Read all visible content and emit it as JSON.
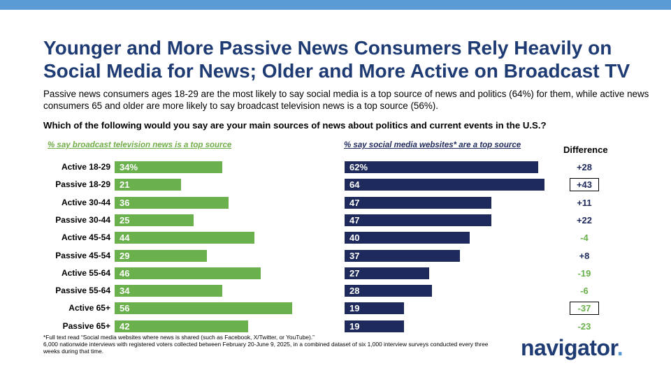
{
  "colors": {
    "broadcast": "#6ab04c",
    "social": "#1f2a5c",
    "title": "#1f3b73",
    "accent": "#5b9bd5"
  },
  "title": "Younger and More Passive News Consumers Rely Heavily on Social Media for News; Older and More Active on Broadcast TV",
  "subtitle": "Passive news consumers ages 18-29 are the most likely to say social media is a top source of news and politics (64%) for them, while active news consumers 65 and older are more likely to say broadcast television news is a top source (56%).",
  "question": "Which of the following would you say are your main sources of news about politics and current events in the U.S.?",
  "footnote": {
    "line1": "*Full text read “Social media websites where news is shared (such as Facebook, X/Twitter, or YouTube).”",
    "line2": "6,000 nationwide interviews with registered voters collected between February 20-June 9, 2025, in a combined dataset of six 1,000 interview surveys conducted every three weeks during that time."
  },
  "logo": {
    "text": "navigator",
    "dot": "."
  },
  "chart_data": {
    "type": "bar",
    "title": "Which of the following would you say are your main sources of news about politics and current events in the U.S.?",
    "categories": [
      "Active 18-29",
      "Passive 18-29",
      "Active 30-44",
      "Passive 30-44",
      "Active 45-54",
      "Passive 45-54",
      "Active 55-64",
      "Passive 55-64",
      "Active 65+",
      "Passive 65+"
    ],
    "series": [
      {
        "name": "% say broadcast television news is a top source",
        "values": [
          34,
          21,
          36,
          25,
          44,
          29,
          46,
          34,
          56,
          42
        ],
        "labels": [
          "34%",
          "21",
          "36",
          "25",
          "44",
          "29",
          "46",
          "34",
          "56",
          "42"
        ]
      },
      {
        "name": "% say social media websites* are a top source",
        "values": [
          62,
          64,
          47,
          47,
          40,
          37,
          27,
          28,
          19,
          19
        ],
        "labels": [
          "62%",
          "64",
          "47",
          "47",
          "40",
          "37",
          "27",
          "28",
          "19",
          "19"
        ]
      }
    ],
    "difference": {
      "header": "Difference",
      "values": [
        28,
        43,
        11,
        22,
        -4,
        8,
        -19,
        -6,
        -37,
        -23
      ],
      "labels": [
        "+28",
        "+43",
        "+11",
        "+22",
        "-4",
        "+8",
        "-19",
        "-6",
        "-37",
        "-23"
      ],
      "boxed": [
        false,
        true,
        false,
        false,
        false,
        false,
        false,
        false,
        true,
        false
      ]
    },
    "xlim": [
      0,
      64
    ]
  }
}
